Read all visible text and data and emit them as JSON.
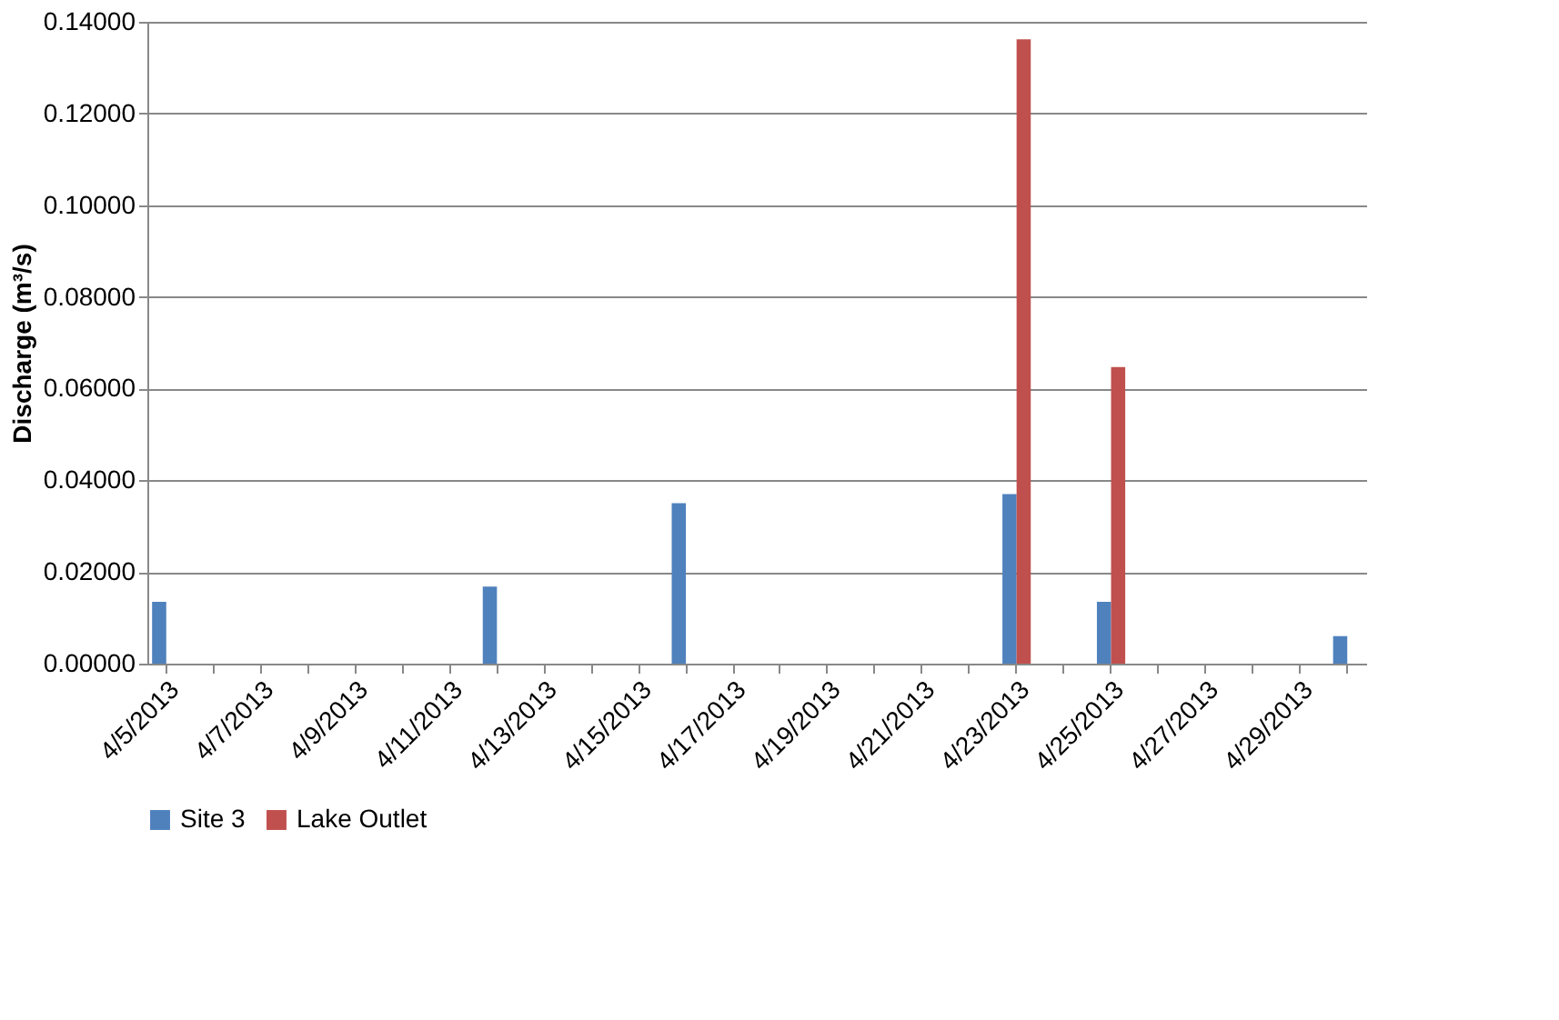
{
  "chart_data": {
    "type": "bar",
    "ylabel": "Discharge (m³/s)",
    "categories": [
      "4/5/2013",
      null,
      "4/7/2013",
      null,
      "4/9/2013",
      null,
      "4/11/2013",
      null,
      "4/13/2013",
      null,
      "4/15/2013",
      null,
      "4/17/2013",
      null,
      "4/19/2013",
      null,
      "4/21/2013",
      null,
      "4/23/2013",
      null,
      "4/25/2013",
      null,
      "4/27/2013",
      null,
      "4/29/2013",
      null
    ],
    "series": [
      {
        "name": "Site 3",
        "color": "#4f81bd",
        "values": [
          0.0135,
          null,
          null,
          null,
          null,
          null,
          null,
          0.0168,
          null,
          null,
          null,
          0.035,
          null,
          null,
          null,
          null,
          null,
          null,
          0.037,
          null,
          0.0135,
          null,
          null,
          null,
          null,
          0.006
        ]
      },
      {
        "name": "Lake Outlet",
        "color": "#c0504d",
        "values": [
          null,
          null,
          null,
          null,
          null,
          null,
          null,
          null,
          null,
          null,
          null,
          null,
          null,
          null,
          null,
          null,
          null,
          null,
          0.1362,
          null,
          0.0647,
          null,
          null,
          null,
          null,
          null
        ]
      }
    ],
    "ylim": [
      0,
      0.14
    ],
    "yticks": [
      {
        "value": 0,
        "label": "0.00000"
      },
      {
        "value": 0.02,
        "label": "0.02000"
      },
      {
        "value": 0.04,
        "label": "0.04000"
      },
      {
        "value": 0.06,
        "label": "0.06000"
      },
      {
        "value": 0.08,
        "label": "0.08000"
      },
      {
        "value": 0.1,
        "label": "0.10000"
      },
      {
        "value": 0.12,
        "label": "0.12000"
      },
      {
        "value": 0.14,
        "label": "0.14000"
      }
    ],
    "grid": "y",
    "legend": "bottom"
  }
}
